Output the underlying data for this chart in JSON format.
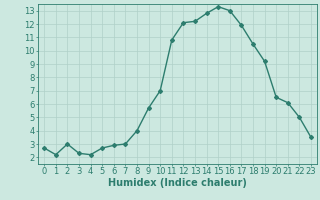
{
  "x": [
    0,
    1,
    2,
    3,
    4,
    5,
    6,
    7,
    8,
    9,
    10,
    11,
    12,
    13,
    14,
    15,
    16,
    17,
    18,
    19,
    20,
    21,
    22,
    23
  ],
  "y": [
    2.7,
    2.2,
    3.0,
    2.3,
    2.2,
    2.7,
    2.9,
    3.0,
    4.0,
    5.7,
    7.0,
    10.8,
    12.1,
    12.2,
    12.8,
    13.3,
    13.0,
    11.9,
    10.5,
    9.2,
    6.5,
    6.1,
    5.0,
    3.5
  ],
  "line_color": "#2d7d6e",
  "marker": "D",
  "markersize": 2,
  "linewidth": 1.0,
  "bg_color": "#cce8e0",
  "grid_color": "#b0d0c8",
  "xlabel": "Humidex (Indice chaleur)",
  "xlabel_fontsize": 7,
  "xlim": [
    -0.5,
    23.5
  ],
  "ylim": [
    1.5,
    13.5
  ],
  "yticks": [
    2,
    3,
    4,
    5,
    6,
    7,
    8,
    9,
    10,
    11,
    12,
    13
  ],
  "xticks": [
    0,
    1,
    2,
    3,
    4,
    5,
    6,
    7,
    8,
    9,
    10,
    11,
    12,
    13,
    14,
    15,
    16,
    17,
    18,
    19,
    20,
    21,
    22,
    23
  ],
  "tick_fontsize": 6,
  "axis_color": "#2d7d6e",
  "spine_color": "#2d7d6e"
}
